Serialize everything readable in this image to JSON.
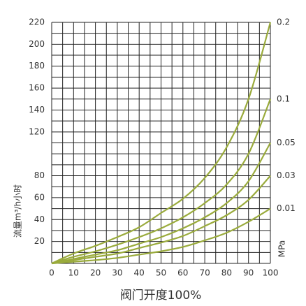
{
  "chart_data": {
    "type": "line",
    "x_label": "阀门开度100%",
    "y_label": "流量m³/h小时",
    "unit_label": "MPa",
    "x": [
      0,
      10,
      20,
      30,
      40,
      50,
      60,
      70,
      80,
      90,
      100
    ],
    "series": [
      {
        "name": "0.2",
        "color": "#9aab3c",
        "values": [
          0,
          9,
          16,
          24,
          33,
          46,
          59,
          78,
          106,
          150,
          220
        ]
      },
      {
        "name": "0.1",
        "color": "#9aab3c",
        "values": [
          0,
          6,
          11,
          17,
          24,
          32,
          42,
          55,
          72,
          100,
          150
        ]
      },
      {
        "name": "0.05",
        "color": "#9aab3c",
        "values": [
          0,
          4,
          8,
          12,
          18,
          24,
          32,
          42,
          55,
          75,
          110
        ]
      },
      {
        "name": "0.03",
        "color": "#9aab3c",
        "values": [
          0,
          3,
          6,
          9,
          14,
          19,
          25,
          34,
          44,
          58,
          80
        ]
      },
      {
        "name": "0.01",
        "color": "#9aab3c",
        "values": [
          0,
          1.5,
          3,
          5,
          8,
          11,
          15,
          21,
          28,
          38,
          50
        ]
      }
    ],
    "xlim": [
      0,
      100
    ],
    "ylim": [
      0,
      220
    ],
    "xticks": [
      0,
      10,
      20,
      30,
      40,
      50,
      60,
      70,
      80,
      90,
      100
    ],
    "yticks": [
      20,
      40,
      60,
      80,
      120,
      140,
      160,
      180,
      200,
      220
    ],
    "xgrid": [
      0,
      5,
      10,
      15,
      20,
      25,
      30,
      35,
      40,
      45,
      50,
      55,
      60,
      65,
      70,
      75,
      80,
      85,
      90,
      95,
      100
    ],
    "ygrid": [
      0,
      10,
      20,
      30,
      40,
      50,
      60,
      70,
      80,
      90,
      100,
      110,
      120,
      130,
      140,
      150,
      160,
      170,
      180,
      190,
      200,
      210,
      220
    ],
    "grid": true
  }
}
